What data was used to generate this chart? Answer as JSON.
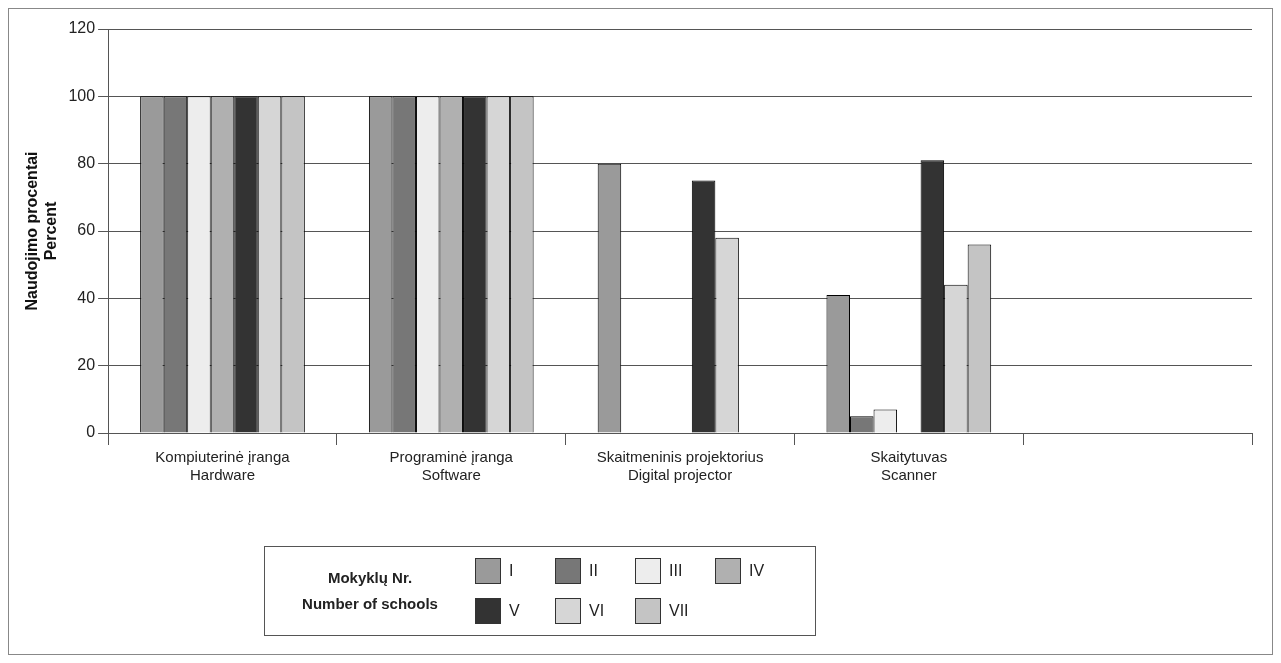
{
  "chart_data": {
    "type": "bar",
    "ylabel": "Naudojimo procentai\nPercent",
    "legend_title": "Mokyklų Nr.\nNumber of schools",
    "categories": [
      "Kompiuterinė įranga\nHardware",
      "Programinė įranga\nSoftware",
      "Skaitmeninis projektorius\nDigital projector",
      "Skaitytuvas\nScanner",
      null
    ],
    "series": [
      {
        "name": "I",
        "color": "#9a9a9a",
        "values": [
          100,
          100,
          80,
          41,
          null
        ]
      },
      {
        "name": "II",
        "color": "#777777",
        "values": [
          100,
          100,
          null,
          5,
          null
        ]
      },
      {
        "name": "III",
        "color": "#ededed",
        "values": [
          100,
          100,
          null,
          7,
          null
        ]
      },
      {
        "name": "IV",
        "color": "#b0b0b0",
        "values": [
          100,
          100,
          null,
          null,
          null
        ]
      },
      {
        "name": "V",
        "color": "#333333",
        "values": [
          100,
          100,
          75,
          81,
          null
        ]
      },
      {
        "name": "VI",
        "color": "#d6d6d6",
        "values": [
          100,
          100,
          58,
          44,
          null
        ]
      },
      {
        "name": "VII",
        "color": "#c4c4c4",
        "values": [
          100,
          100,
          null,
          56,
          null
        ]
      }
    ],
    "ylim": [
      0,
      120
    ],
    "yticks": [
      0,
      20,
      40,
      60,
      80,
      100,
      120
    ],
    "grid": "y",
    "legend": "bottom"
  }
}
